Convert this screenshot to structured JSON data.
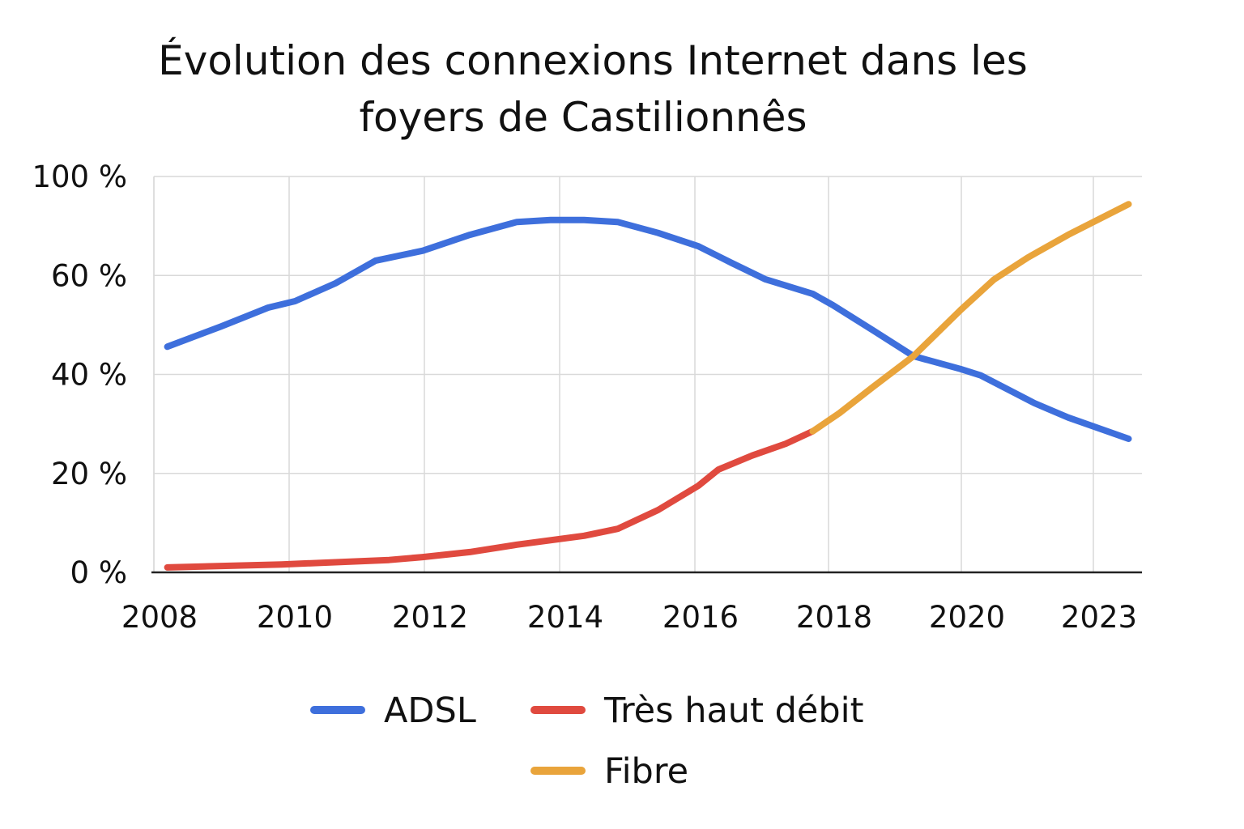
{
  "chart_data": {
    "type": "line",
    "title_lines": [
      "Évolution des connexions Internet dans les",
      "foyers de Castilionnês"
    ],
    "xlabel": "",
    "ylabel": "",
    "x_tick_labels": [
      "2008",
      "2010",
      "2012",
      "2014",
      "2016",
      "2018",
      "2020",
      "2023"
    ],
    "y_tick_labels": [
      "0 %",
      "20 %",
      "40 %",
      "60 %",
      "100 %"
    ],
    "xlim": [
      2008,
      2022.7
    ],
    "ylim": [
      0,
      80
    ],
    "grid": true,
    "legend_position": "bottom",
    "series": [
      {
        "name": "ADSL",
        "color": "#3e6fdc",
        "x": [
          2008.2,
          2009.0,
          2009.7,
          2010.1,
          2010.7,
          2011.3,
          2012.0,
          2012.7,
          2013.4,
          2013.9,
          2014.4,
          2014.9,
          2015.5,
          2016.1,
          2016.6,
          2017.1,
          2017.8,
          2018.1,
          2018.7,
          2019.3,
          2020.0,
          2020.3,
          2021.1,
          2021.6,
          2022.5
        ],
        "y": [
          45.6,
          49.7,
          53.5,
          54.8,
          58.4,
          63.0,
          65.0,
          68.2,
          70.8,
          71.2,
          71.2,
          70.8,
          68.6,
          65.9,
          62.5,
          59.2,
          56.3,
          54.0,
          48.9,
          43.7,
          41.1,
          39.8,
          34.2,
          31.3,
          27.0
        ]
      },
      {
        "name": "Très haut débit",
        "color": "#e04a3f",
        "x": [
          2008.2,
          2009.9,
          2011.5,
          2012.0,
          2012.7,
          2013.4,
          2014.4,
          2014.9,
          2015.5,
          2016.1,
          2016.4,
          2016.9,
          2017.4,
          2017.8
        ],
        "y": [
          1.0,
          1.6,
          2.5,
          3.1,
          4.1,
          5.6,
          7.4,
          8.8,
          12.6,
          17.5,
          20.8,
          23.6,
          26.0,
          28.5
        ]
      },
      {
        "name": "Fibre",
        "color": "#e9a43b",
        "x": [
          2017.8,
          2018.2,
          2018.7,
          2019.3,
          2020.0,
          2020.5,
          2021.0,
          2021.6,
          2022.5
        ],
        "y": [
          28.5,
          32.2,
          37.5,
          43.7,
          53.0,
          59.2,
          63.6,
          68.2,
          74.4
        ]
      }
    ]
  }
}
